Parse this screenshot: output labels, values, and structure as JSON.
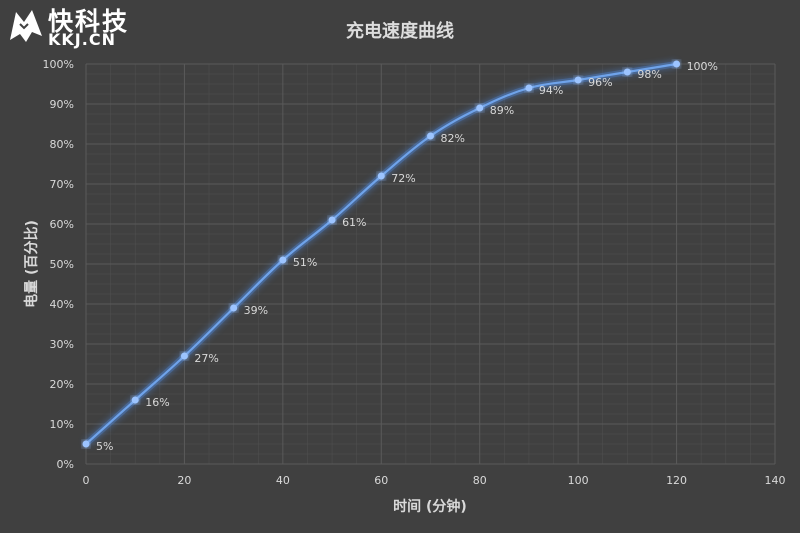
{
  "watermark": {
    "brand_cn": "快科技",
    "brand_en": "KKJ.CN",
    "icon": "wolf-head-icon"
  },
  "colors": {
    "background": "#404040",
    "line": "#6fa3ea",
    "glow": "#4f86d6",
    "grid": "#5a5a5a",
    "text": "#d9d9d9"
  },
  "chart_data": {
    "type": "line",
    "title": "充电速度曲线",
    "xlabel": "时间 (分钟)",
    "ylabel": "电量 (百分比)",
    "xlim": [
      0,
      140
    ],
    "ylim": [
      0,
      100
    ],
    "x_ticks": [
      0,
      20,
      40,
      60,
      80,
      100,
      120,
      140
    ],
    "x_tick_labels": [
      "0",
      "20",
      "40",
      "60",
      "80",
      "100",
      "120",
      "140"
    ],
    "y_ticks": [
      0,
      10,
      20,
      30,
      40,
      50,
      60,
      70,
      80,
      90,
      100
    ],
    "y_tick_labels": [
      "0%",
      "10%",
      "20%",
      "30%",
      "40%",
      "50%",
      "60%",
      "70%",
      "80%",
      "90%",
      "100%"
    ],
    "grid": true,
    "series": [
      {
        "x": [
          0,
          10,
          20,
          30,
          40,
          50,
          60,
          70,
          80,
          90,
          100,
          110,
          120
        ],
        "values": [
          5,
          16,
          27,
          39,
          51,
          61,
          72,
          82,
          89,
          94,
          96,
          98,
          100
        ],
        "data_labels": [
          "5%",
          "16%",
          "27%",
          "39%",
          "51%",
          "61%",
          "72%",
          "82%",
          "89%",
          "94%",
          "96%",
          "98%",
          "100%"
        ]
      }
    ]
  }
}
